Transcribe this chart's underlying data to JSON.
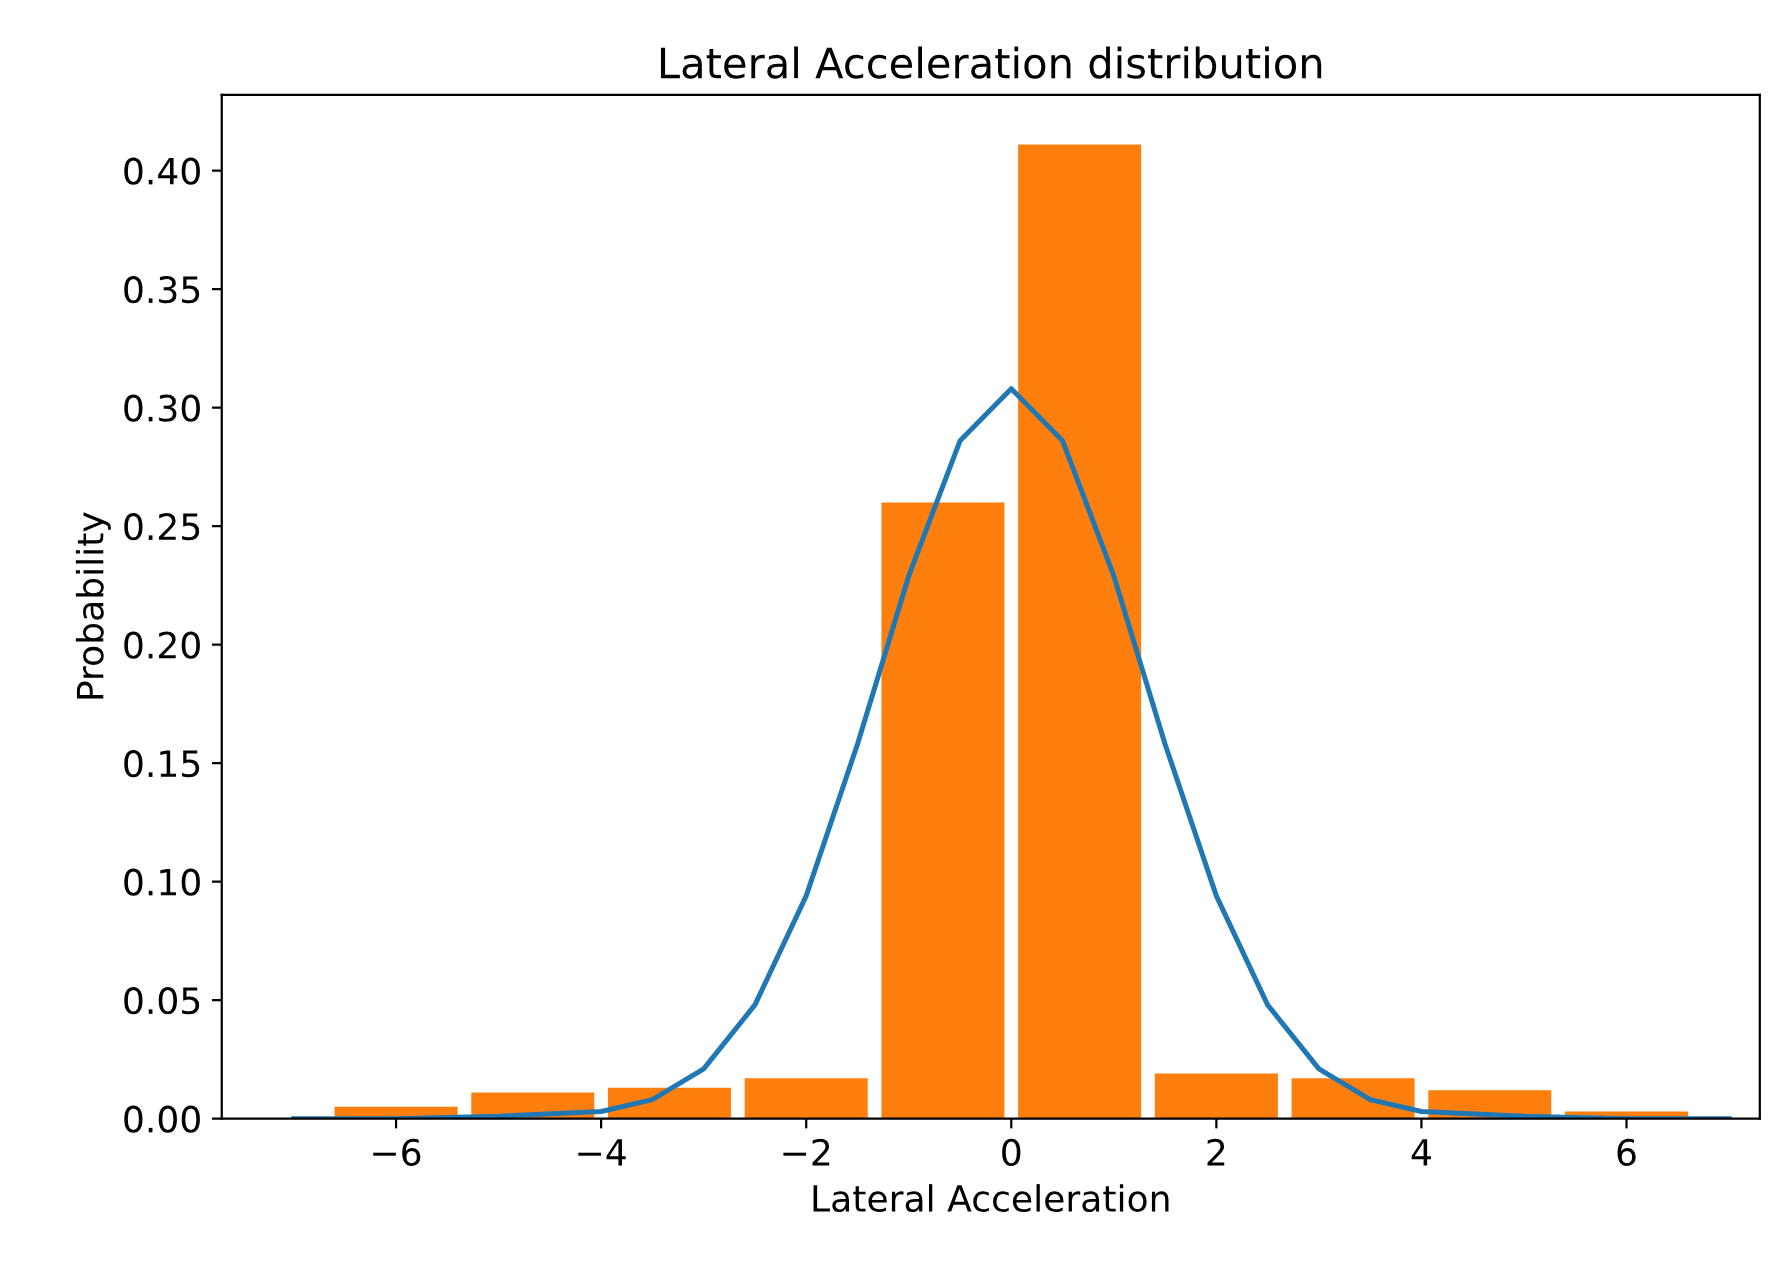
{
  "chart_data": {
    "type": "histogram",
    "title": "Lateral Acceleration distribution",
    "xlabel": "Lateral Acceleration",
    "ylabel": "Probability",
    "bins": [
      -6.667,
      -5.333,
      -4,
      -2.667,
      -1.333,
      0,
      1.333,
      2.667,
      4,
      5.333,
      6.667
    ],
    "values": [
      0.005,
      0.011,
      0.013,
      0.017,
      0.26,
      0.411,
      0.019,
      0.017,
      0.012,
      0.003
    ],
    "color": "#ff7f0e",
    "series": [
      {
        "type": "line",
        "color": "#1f77b4",
        "x": [
          -7,
          -6,
          -5,
          -4,
          -3.5,
          -3,
          -2.5,
          -2,
          -1.5,
          -1,
          -0.5,
          0,
          0.5,
          1,
          1.5,
          2,
          2.5,
          3,
          3.5,
          4,
          5,
          6,
          7
        ],
        "values": [
          0,
          0,
          0.001,
          0.003,
          0.008,
          0.021,
          0.048,
          0.094,
          0.158,
          0.229,
          0.286,
          0.308,
          0.286,
          0.229,
          0.158,
          0.094,
          0.048,
          0.021,
          0.008,
          0.003,
          0.001,
          0,
          0
        ]
      }
    ],
    "xlim": [
      -7.7,
      7.3
    ],
    "ylim": [
      0,
      0.432
    ],
    "xticks": [
      {
        "value": -6,
        "label": "−6"
      },
      {
        "value": -4,
        "label": "−4"
      },
      {
        "value": -2,
        "label": "−2"
      },
      0,
      2,
      4,
      6
    ],
    "yticks": [
      {
        "value": 0,
        "label": "0.00"
      },
      {
        "value": 0.05,
        "label": "0.05"
      },
      {
        "value": 0.1,
        "label": "0.10"
      },
      {
        "value": 0.15,
        "label": "0.15"
      },
      {
        "value": 0.2,
        "label": "0.20"
      },
      {
        "value": 0.25,
        "label": "0.25"
      },
      {
        "value": 0.3,
        "label": "0.30"
      },
      {
        "value": 0.35,
        "label": "0.35"
      },
      {
        "value": 0.4,
        "label": "0.40"
      }
    ],
    "grid": false,
    "legend": false
  }
}
